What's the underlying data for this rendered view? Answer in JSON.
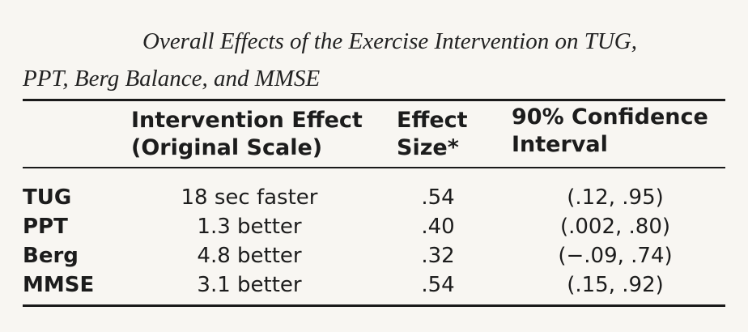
{
  "caption": {
    "line1": "Overall Effects of the Exercise Intervention on TUG,",
    "line2": "PPT, Berg Balance, and MMSE"
  },
  "table": {
    "headers": {
      "intervention_effect": [
        "Intervention Effect",
        "(Original Scale)"
      ],
      "effect_size": [
        "Effect",
        "Size*"
      ],
      "confidence_interval": [
        "90% Confidence",
        "Interval"
      ]
    },
    "rows": [
      {
        "measure": "TUG",
        "effect": "18 sec faster",
        "size": ".54",
        "ci": "(.12, .95)"
      },
      {
        "measure": "PPT",
        "effect": "1.3 better",
        "size": ".40",
        "ci": "(.002, .80)"
      },
      {
        "measure": "Berg",
        "effect": "4.8 better",
        "size": ".32",
        "ci": "(−.09, .74)"
      },
      {
        "measure": "MMSE",
        "effect": "3.1 better",
        "size": ".54",
        "ci": "(.15, .92)"
      }
    ]
  }
}
